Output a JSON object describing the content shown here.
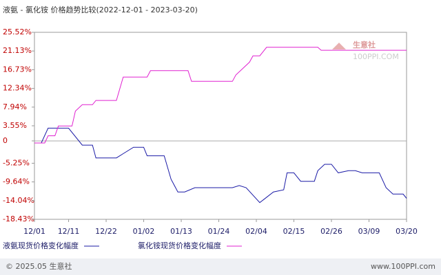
{
  "chart_data": {
    "type": "line",
    "title": "液氨 - 氯化铵 价格趋势比较(2022-12-01 - 2023-03-20)",
    "xlim": [
      "12/01",
      "03/20"
    ],
    "xticks": [
      "12/01",
      "12/11",
      "12/22",
      "01/02",
      "01/13",
      "01/24",
      "02/04",
      "02/15",
      "02/26",
      "03/09",
      "03/20"
    ],
    "ylim": [
      -18.43,
      25.52
    ],
    "yticks": [
      {
        "value": 25.52,
        "label": "25.52%"
      },
      {
        "value": 21.13,
        "label": "21.13%"
      },
      {
        "value": 16.73,
        "label": "16.73%"
      },
      {
        "value": 12.34,
        "label": "12.34%"
      },
      {
        "value": 7.94,
        "label": "7.94%"
      },
      {
        "value": 3.55,
        "label": "3.55%"
      },
      0,
      {
        "value": -5.25,
        "label": "-5.25%"
      },
      {
        "value": -9.64,
        "label": "-9.64%"
      },
      {
        "value": -14.04,
        "label": "-14.04%"
      },
      {
        "value": -18.43,
        "label": "-18.43%"
      }
    ],
    "series": [
      {
        "name": "液氨现货价格变化幅度",
        "color": "#1a1aa6",
        "x": [
          "12/01",
          "12/03",
          "12/05",
          "12/11",
          "12/15",
          "12/18",
          "12/19",
          "12/25",
          "12/27",
          "12/30",
          "01/02",
          "01/03",
          "01/08",
          "01/10",
          "01/12",
          "01/14",
          "01/17",
          "01/28",
          "01/30",
          "02/01",
          "02/05",
          "02/09",
          "02/12",
          "02/13",
          "02/15",
          "02/17",
          "02/21",
          "02/22",
          "02/24",
          "02/26",
          "02/28",
          "03/03",
          "03/05",
          "03/07",
          "03/12",
          "03/14",
          "03/16",
          "03/19",
          "03/20"
        ],
        "values": [
          -0.5,
          -0.5,
          3,
          3,
          -1,
          -1,
          -4,
          -4,
          -3,
          -1.5,
          -1.5,
          -3.5,
          -3.5,
          -9,
          -12,
          -12,
          -11,
          -11,
          -10.5,
          -11,
          -14.5,
          -12,
          -11.5,
          -7.5,
          -7.5,
          -9.5,
          -9.5,
          -7,
          -5.5,
          -5.5,
          -7.5,
          -7,
          -7,
          -7.5,
          -7.5,
          -11,
          -12.5,
          -12.5,
          -13.5
        ]
      },
      {
        "name": "氯化铵现货价格变化幅度",
        "color": "#e020d0",
        "x": [
          "12/01",
          "12/04",
          "12/05",
          "12/07",
          "12/08",
          "12/12",
          "12/13",
          "12/15",
          "12/18",
          "12/19",
          "12/25",
          "12/27",
          "01/03",
          "01/04",
          "01/15",
          "01/16",
          "01/28",
          "01/29",
          "01/31",
          "02/02",
          "02/03",
          "02/05",
          "02/07",
          "02/22",
          "02/23",
          "03/20"
        ],
        "values": [
          -0.5,
          -0.5,
          1.2,
          1.2,
          3.5,
          3.5,
          7,
          8.5,
          8.5,
          9.5,
          9.5,
          15,
          15,
          16.5,
          16.5,
          14,
          14,
          15.5,
          17,
          18.5,
          20,
          20,
          22,
          22,
          21.3,
          21.3
        ]
      }
    ],
    "watermark": {
      "name": "生意社",
      "url": "100PPI.COM"
    },
    "footer": {
      "left": "© 2025.05 生意社",
      "right": "www.100PPI.com"
    }
  }
}
